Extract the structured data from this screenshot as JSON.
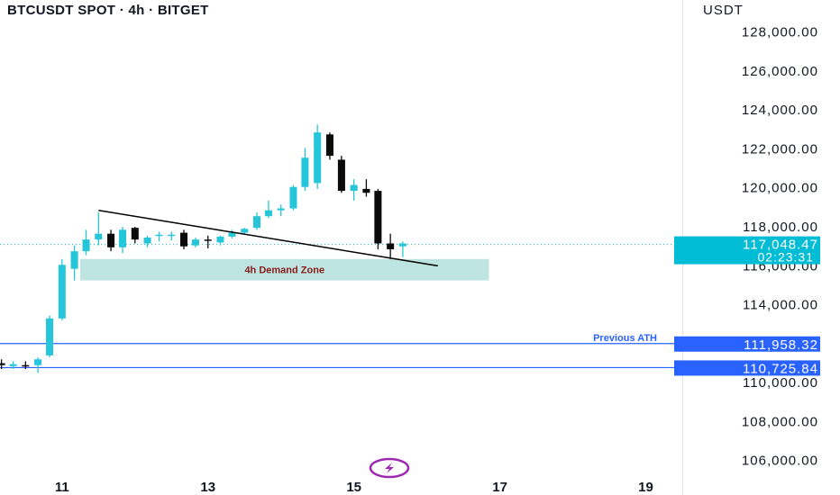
{
  "header": {
    "title": "BTCUSDT SPOT · 4h · BITGET",
    "currency": "USDT"
  },
  "colors": {
    "up": "#26c6da",
    "down": "#0b0b0b",
    "level_line": "#2962ff",
    "zone_fill": "#b2dfdb",
    "zone_text": "#8b1a1a",
    "current_badge": "#00bcd4",
    "level_badge": "#2962ff",
    "logo": "#9c27b0"
  },
  "logo_icon": "lightning-bolt-icon",
  "chart_data": {
    "type": "candlestick",
    "title": "BTCUSDT SPOT · 4h · BITGET",
    "y_axis_unit": "USDT",
    "ylim": [
      105200,
      129600
    ],
    "y_ticks": [
      "128,000.00",
      "126,000.00",
      "124,000.00",
      "122,000.00",
      "120,000.00",
      "118,000.00",
      "116,000.00",
      "114,000.00",
      "110,000.00",
      "108,000.00",
      "106,000.00"
    ],
    "y_tick_values": [
      128000,
      126000,
      124000,
      122000,
      120000,
      118000,
      116000,
      114000,
      110000,
      108000,
      106000
    ],
    "x_ticks": [
      "11",
      "13",
      "15",
      "17",
      "19"
    ],
    "x_tick_values": [
      11,
      13,
      15,
      17,
      19
    ],
    "xlim": [
      10.15,
      19.5
    ],
    "grid": false,
    "candles": [
      {
        "t": 10.17,
        "o": 110950,
        "h": 111150,
        "l": 110650,
        "c": 110850
      },
      {
        "t": 10.33,
        "o": 110800,
        "h": 111050,
        "l": 110650,
        "c": 110900
      },
      {
        "t": 10.5,
        "o": 110850,
        "h": 111050,
        "l": 110650,
        "c": 110800
      },
      {
        "t": 10.67,
        "o": 110850,
        "h": 111250,
        "l": 110450,
        "c": 111150
      },
      {
        "t": 10.83,
        "o": 111350,
        "h": 113400,
        "l": 111250,
        "c": 113250
      },
      {
        "t": 11.0,
        "o": 113250,
        "h": 116300,
        "l": 113150,
        "c": 116000
      },
      {
        "t": 11.17,
        "o": 115800,
        "h": 117000,
        "l": 115200,
        "c": 116700
      },
      {
        "t": 11.33,
        "o": 116700,
        "h": 117800,
        "l": 116500,
        "c": 117300
      },
      {
        "t": 11.5,
        "o": 117300,
        "h": 118700,
        "l": 117000,
        "c": 117600
      },
      {
        "t": 11.67,
        "o": 117600,
        "h": 117800,
        "l": 116700,
        "c": 116900
      },
      {
        "t": 11.83,
        "o": 116900,
        "h": 117950,
        "l": 116600,
        "c": 117800
      },
      {
        "t": 12.0,
        "o": 117900,
        "h": 117950,
        "l": 117100,
        "c": 117300
      },
      {
        "t": 12.17,
        "o": 117100,
        "h": 117500,
        "l": 116900,
        "c": 117400
      },
      {
        "t": 12.33,
        "o": 117500,
        "h": 117700,
        "l": 117200,
        "c": 117550
      },
      {
        "t": 12.5,
        "o": 117500,
        "h": 117700,
        "l": 117250,
        "c": 117550
      },
      {
        "t": 12.67,
        "o": 117650,
        "h": 117800,
        "l": 116800,
        "c": 116950
      },
      {
        "t": 12.83,
        "o": 117000,
        "h": 117400,
        "l": 116900,
        "c": 117300
      },
      {
        "t": 13.0,
        "o": 117300,
        "h": 117500,
        "l": 116850,
        "c": 117250
      },
      {
        "t": 13.17,
        "o": 117150,
        "h": 117500,
        "l": 117000,
        "c": 117450
      },
      {
        "t": 13.33,
        "o": 117450,
        "h": 117800,
        "l": 117350,
        "c": 117650
      },
      {
        "t": 13.5,
        "o": 117650,
        "h": 117900,
        "l": 117550,
        "c": 117850
      },
      {
        "t": 13.67,
        "o": 117900,
        "h": 118700,
        "l": 117800,
        "c": 118500
      },
      {
        "t": 13.83,
        "o": 118500,
        "h": 119300,
        "l": 118400,
        "c": 118800
      },
      {
        "t": 14.0,
        "o": 118800,
        "h": 119100,
        "l": 118500,
        "c": 118900
      },
      {
        "t": 14.17,
        "o": 118900,
        "h": 120100,
        "l": 118800,
        "c": 120000
      },
      {
        "t": 14.33,
        "o": 120000,
        "h": 122000,
        "l": 119800,
        "c": 121500
      },
      {
        "t": 14.5,
        "o": 120200,
        "h": 123200,
        "l": 119900,
        "c": 122800
      },
      {
        "t": 14.67,
        "o": 122700,
        "h": 122800,
        "l": 121400,
        "c": 121600
      },
      {
        "t": 14.83,
        "o": 121400,
        "h": 121600,
        "l": 119700,
        "c": 119800
      },
      {
        "t": 15.0,
        "o": 119800,
        "h": 120400,
        "l": 119300,
        "c": 120100
      },
      {
        "t": 15.17,
        "o": 119900,
        "h": 120400,
        "l": 119500,
        "c": 119700
      },
      {
        "t": 15.33,
        "o": 119800,
        "h": 119900,
        "l": 116800,
        "c": 117100
      },
      {
        "t": 15.5,
        "o": 117100,
        "h": 117600,
        "l": 116300,
        "c": 116800
      },
      {
        "t": 15.67,
        "o": 116950,
        "h": 117200,
        "l": 116400,
        "c": 117100
      }
    ],
    "trendline": {
      "from": {
        "t": 11.5,
        "price": 118800
      },
      "to": {
        "t": 16.15,
        "price": 115950
      }
    },
    "demand_zone": {
      "label": "4h Demand Zone",
      "t_start": 11.25,
      "t_end": 16.85,
      "top": 116300,
      "bottom": 115200
    },
    "current_price": {
      "value": 117048.47,
      "label": "117,048.47",
      "countdown": "02:23:31"
    },
    "levels": [
      {
        "name": "Previous ATH",
        "label": "Previous ATH",
        "price": 111958.32,
        "price_label": "111,958.32"
      },
      {
        "price": 110725.84,
        "price_label": "110,725.84"
      }
    ]
  }
}
